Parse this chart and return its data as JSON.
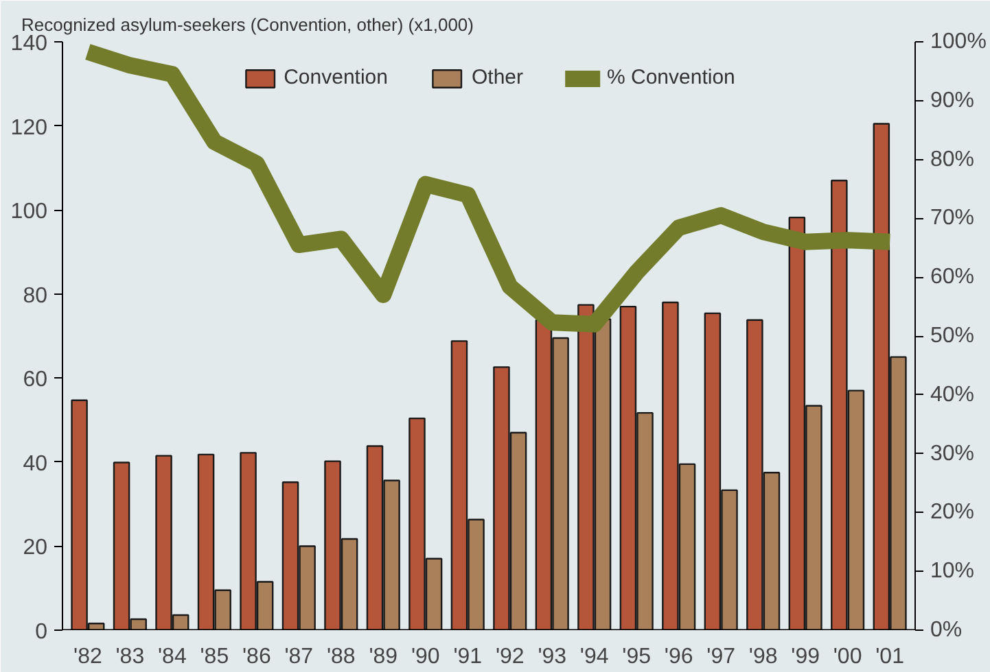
{
  "chart_data": {
    "type": "bar",
    "title": "Recognized asylum-seekers (Convention, other) (x1,000)",
    "categories": [
      "'82",
      "'83",
      "'84",
      "'85",
      "'86",
      "'87",
      "'88",
      "'89",
      "'90",
      "'91",
      "'92",
      "'93",
      "'94",
      "'95",
      "'96",
      "'97",
      "'98",
      "'99",
      "'00",
      "'01"
    ],
    "series": [
      {
        "name": "Convention",
        "color": "#b5553a",
        "values": [
          54.7,
          39.9,
          41.5,
          41.8,
          42.2,
          35.2,
          40.2,
          43.8,
          50.4,
          68.8,
          62.6,
          73.8,
          77.4,
          77,
          78,
          75.4,
          73.8,
          98.2,
          107,
          120.5
        ]
      },
      {
        "name": "Other",
        "color": "#a9805a",
        "values": [
          1.6,
          2.6,
          3.6,
          9.5,
          11.5,
          20,
          21.7,
          35.6,
          17,
          26.3,
          47,
          69.5,
          74,
          51.7,
          39.5,
          33.3,
          37.5,
          53.4,
          57,
          65
        ]
      },
      {
        "name": "% Convention",
        "type": "line",
        "axis": "y2",
        "color": "#727c2a",
        "values": [
          98.3,
          96,
          94.5,
          83,
          79.3,
          65.5,
          66.5,
          57,
          75.8,
          74,
          58.4,
          52.3,
          52,
          60.8,
          68.4,
          70.5,
          67.7,
          66,
          66.3,
          66
        ]
      }
    ],
    "ylim": [
      0,
      140
    ],
    "yticks": [
      0,
      20,
      40,
      60,
      80,
      100,
      120,
      140
    ],
    "y2lim": [
      0,
      100
    ],
    "y2ticks": [
      {
        "value": 0,
        "label": "0%"
      },
      {
        "value": 10,
        "label": "10%"
      },
      {
        "value": 20,
        "label": "20%"
      },
      {
        "value": 30,
        "label": "30%"
      },
      {
        "value": 40,
        "label": "40%"
      },
      {
        "value": 50,
        "label": "50%"
      },
      {
        "value": 60,
        "label": "60%"
      },
      {
        "value": 70,
        "label": "70%"
      },
      {
        "value": 80,
        "label": "80%"
      },
      {
        "value": 90,
        "label": "90%"
      },
      {
        "value": 100,
        "label": "100%"
      }
    ],
    "grid": false,
    "legend": "top",
    "line_style": "solid",
    "marker": "none"
  }
}
